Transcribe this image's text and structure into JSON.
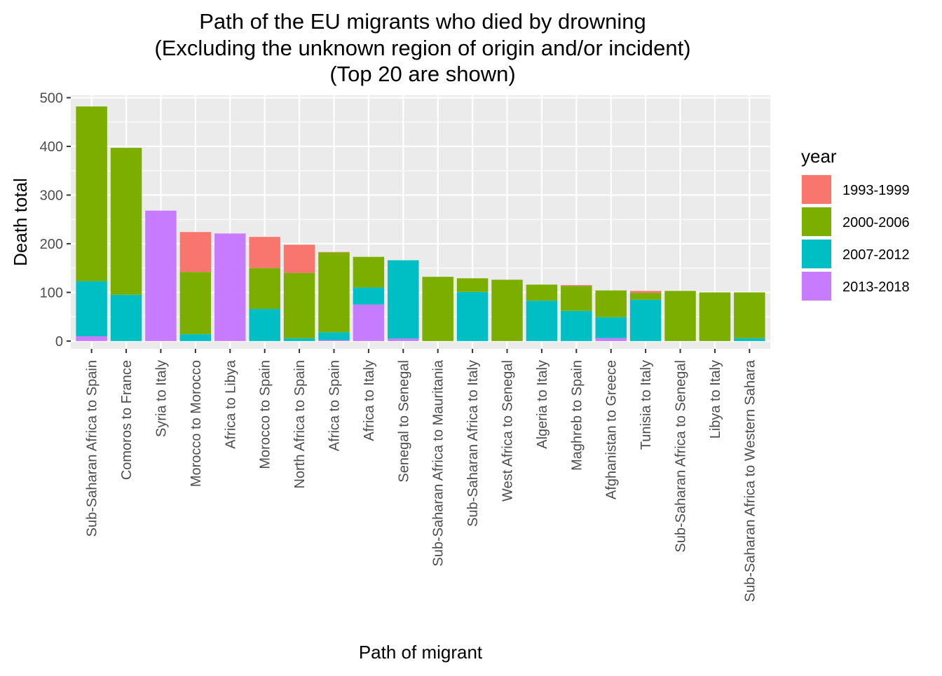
{
  "chart_data": {
    "type": "bar",
    "stacked": true,
    "title": [
      "Path of the EU migrants who died by drowning",
      "(Excluding the unknown region of origin and/or incident)",
      "(Top 20 are shown)"
    ],
    "xlabel": "Path of migrant",
    "ylabel": "Death total",
    "ylim": [
      -16,
      505
    ],
    "yticks": [
      0,
      100,
      200,
      300,
      400,
      500
    ],
    "grid": true,
    "legend": {
      "title": "year",
      "position": "right"
    },
    "categories": [
      "Sub-Saharan Africa to Spain",
      "Comoros to France",
      "Syria to Italy",
      "Morocco to Morocco",
      "Africa to Libya",
      "Morocco to Spain",
      "North Africa to Spain",
      "Africa to Spain",
      "Africa to Italy",
      "Senegal to Senegal",
      "Sub-Saharan Africa to Mauritania",
      "Sub-Saharan Africa to Italy",
      "West Africa to Senegal",
      "Algeria to Italy",
      "Maghreb to Spain",
      "Afghanistan to Greece",
      "Tunisia to Italy",
      "Sub-Saharan Africa to Senegal",
      "Libya to Italy",
      "Sub-Saharan Africa to Western Sahara"
    ],
    "series": [
      {
        "name": "2013-2018",
        "color": "#C77CFF",
        "values": [
          10,
          0,
          268,
          0,
          221,
          0,
          0,
          2,
          75,
          5,
          0,
          0,
          0,
          0,
          0,
          6,
          0,
          0,
          0,
          0
        ]
      },
      {
        "name": "2007-2012",
        "color": "#00BFC4",
        "values": [
          113,
          95,
          0,
          14,
          0,
          66,
          6,
          16,
          35,
          161,
          0,
          101,
          0,
          83,
          62,
          43,
          85,
          0,
          0,
          6
        ]
      },
      {
        "name": "2000-2006",
        "color": "#7CAE00",
        "values": [
          359,
          302,
          0,
          128,
          0,
          84,
          134,
          164,
          63,
          0,
          132,
          28,
          126,
          33,
          51,
          55,
          14,
          103,
          100,
          94
        ]
      },
      {
        "name": "1993-1999",
        "color": "#F8766D",
        "values": [
          0,
          0,
          0,
          82,
          0,
          64,
          58,
          1,
          0,
          0,
          0,
          0,
          0,
          0,
          2,
          0,
          4,
          0,
          0,
          0
        ]
      }
    ],
    "legend_order": [
      "1993-1999",
      "2000-2006",
      "2007-2012",
      "2013-2018"
    ]
  }
}
